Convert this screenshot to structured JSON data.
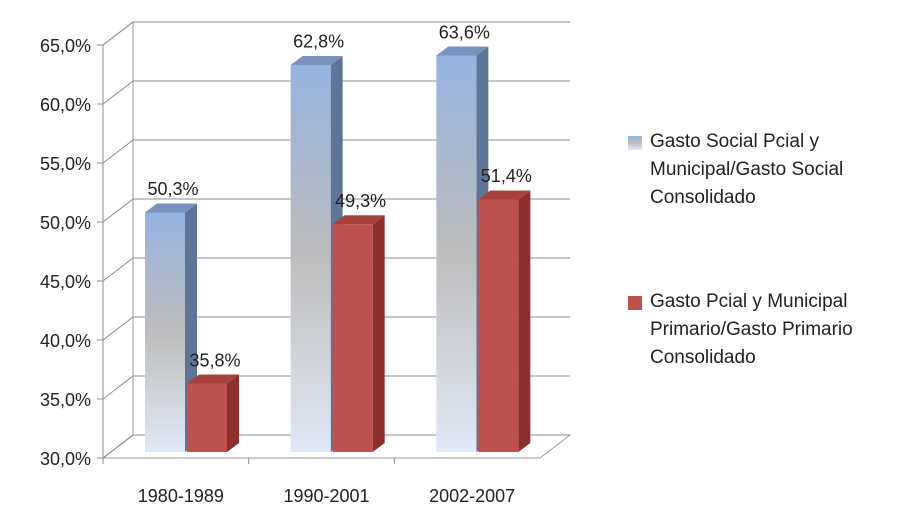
{
  "chart_data": {
    "type": "bar3d",
    "categories": [
      "1980-1989",
      "1990-2001",
      "2002-2007"
    ],
    "series": [
      {
        "name": "Gasto Social Pcial y Municipal/Gasto Social Consolidado",
        "color": "#95b3e0",
        "values": [
          50.3,
          62.8,
          63.6
        ],
        "value_labels": [
          "50,3%",
          "62,8%",
          "63,6%"
        ]
      },
      {
        "name": "Gasto Pcial y Municipal Primario/Gasto Primario Consolidado",
        "color": "#c0504d",
        "values": [
          35.8,
          49.3,
          51.4
        ],
        "value_labels": [
          "35,8%",
          "49,3%",
          "51,4%"
        ]
      }
    ],
    "ylim": [
      30,
      65
    ],
    "yticks": [
      {
        "value": 30,
        "label": "30,0%"
      },
      {
        "value": 35,
        "label": "35,0%"
      },
      {
        "value": 40,
        "label": "40,0%"
      },
      {
        "value": 45,
        "label": "45,0%"
      },
      {
        "value": 50,
        "label": "50,0%"
      },
      {
        "value": 55,
        "label": "55,0%"
      },
      {
        "value": 60,
        "label": "60,0%"
      },
      {
        "value": 65,
        "label": "65,0%"
      }
    ],
    "grid": true,
    "legend": "right"
  }
}
